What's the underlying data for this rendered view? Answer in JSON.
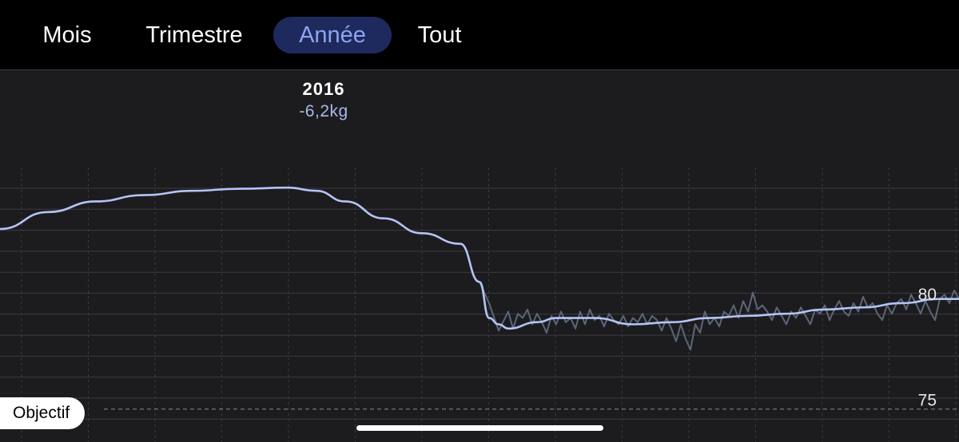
{
  "tabs": [
    {
      "label": "Mois",
      "active": false
    },
    {
      "label": "Trimestre",
      "active": false
    },
    {
      "label": "Année",
      "active": true
    },
    {
      "label": "Tout",
      "active": false
    }
  ],
  "period": {
    "year": "2016",
    "delta": "-6,2kg"
  },
  "goal_label": "Objectif",
  "colors": {
    "background": "#1c1c1e",
    "tabbar": "#000000",
    "active_tab_bg": "#1e2a5e",
    "active_tab_text": "#8ea4f0",
    "trend_line": "#b4c4f6",
    "raw_line": "#5c6678",
    "grid": "#3c3c40"
  },
  "chart_data": {
    "type": "line",
    "y_tick_labels": [
      {
        "value": 80,
        "label": "80"
      },
      {
        "value": 75,
        "label": "75"
      }
    ],
    "ylim": [
      74.5,
      86.4
    ],
    "goal": 75,
    "grid": true,
    "series": [
      {
        "role": "trend",
        "x": [
          0,
          0.05,
          0.1,
          0.15,
          0.2,
          0.25,
          0.3,
          0.33,
          0.36,
          0.4,
          0.44,
          0.48,
          0.5,
          0.51,
          0.52,
          0.53,
          0.56,
          0.58,
          0.62,
          0.66,
          0.7,
          0.74,
          0.78,
          0.82,
          0.86,
          0.9,
          0.94,
          0.98,
          1.0
        ],
        "values": [
          83.5,
          84.3,
          84.8,
          85.1,
          85.3,
          85.4,
          85.45,
          85.3,
          84.8,
          84.0,
          83.3,
          82.8,
          81.0,
          79.3,
          79.0,
          78.8,
          79.1,
          79.3,
          79.3,
          79.0,
          79.1,
          79.3,
          79.4,
          79.5,
          79.7,
          79.8,
          80.0,
          80.2,
          80.2
        ]
      },
      {
        "role": "raw",
        "x": [
          0.5,
          0.51,
          0.52,
          0.53,
          0.535,
          0.54,
          0.545,
          0.55,
          0.555,
          0.56,
          0.565,
          0.57,
          0.575,
          0.58,
          0.585,
          0.59,
          0.595,
          0.6,
          0.605,
          0.61,
          0.615,
          0.62,
          0.625,
          0.63,
          0.635,
          0.64,
          0.645,
          0.65,
          0.655,
          0.66,
          0.665,
          0.67,
          0.675,
          0.68,
          0.685,
          0.69,
          0.695,
          0.7,
          0.705,
          0.71,
          0.715,
          0.72,
          0.725,
          0.73,
          0.735,
          0.74,
          0.745,
          0.75,
          0.755,
          0.76,
          0.765,
          0.77,
          0.775,
          0.78,
          0.785,
          0.79,
          0.795,
          0.8,
          0.805,
          0.81,
          0.815,
          0.82,
          0.825,
          0.83,
          0.835,
          0.84,
          0.845,
          0.85,
          0.855,
          0.86,
          0.865,
          0.87,
          0.875,
          0.88,
          0.885,
          0.89,
          0.895,
          0.9,
          0.905,
          0.91,
          0.915,
          0.92,
          0.925,
          0.93,
          0.935,
          0.94,
          0.945,
          0.95,
          0.955,
          0.96,
          0.965,
          0.97,
          0.975,
          0.98,
          0.985,
          0.99,
          0.995,
          1.0
        ],
        "values": [
          81.0,
          80.0,
          78.7,
          79.6,
          78.8,
          79.5,
          79.3,
          79.7,
          79.0,
          79.5,
          79.1,
          78.6,
          79.4,
          79.0,
          79.6,
          79.1,
          79.3,
          78.8,
          79.6,
          79.0,
          79.7,
          79.2,
          79.4,
          78.9,
          79.5,
          79.2,
          79.0,
          79.4,
          78.9,
          79.3,
          79.1,
          79.5,
          79.0,
          79.4,
          79.2,
          78.7,
          79.3,
          78.8,
          78.2,
          79.0,
          78.3,
          77.8,
          79.0,
          78.6,
          79.6,
          79.0,
          79.3,
          78.9,
          79.6,
          79.4,
          79.9,
          79.3,
          80.1,
          79.6,
          80.5,
          79.7,
          79.9,
          79.6,
          79.2,
          79.8,
          79.4,
          79.0,
          79.6,
          79.3,
          79.8,
          79.4,
          79.0,
          79.7,
          79.5,
          79.9,
          79.2,
          79.7,
          80.1,
          79.6,
          79.4,
          80.0,
          79.6,
          80.3,
          79.8,
          80.0,
          79.5,
          79.2,
          79.9,
          79.5,
          80.0,
          80.2,
          79.7,
          80.4,
          80.0,
          79.5,
          80.1,
          79.6,
          79.2,
          80.2,
          80.4,
          80.0,
          80.6,
          80.2
        ]
      }
    ]
  }
}
